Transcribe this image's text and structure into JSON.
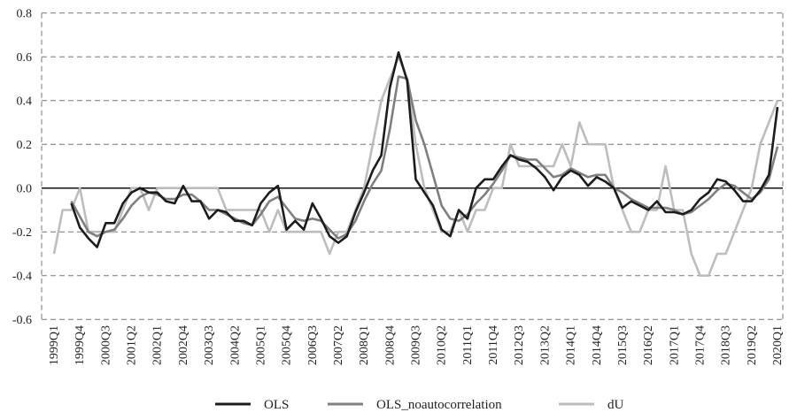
{
  "chart_data": {
    "type": "line",
    "title": "",
    "xlabel": "",
    "ylabel": "",
    "ylim": [
      -0.6,
      0.8
    ],
    "y_ticks": [
      "0.8",
      "0.6",
      "0.4",
      "0.2",
      "0.0",
      "-0.2",
      "-0.4",
      "-0.6"
    ],
    "y_tick_values": [
      0.8,
      0.6,
      0.4,
      0.2,
      0.0,
      -0.2,
      -0.4,
      -0.6
    ],
    "grid": "horizontal dashed",
    "legend_position": "bottom",
    "x": [
      "1999Q1",
      "1999Q2",
      "1999Q3",
      "1999Q4",
      "2000Q1",
      "2000Q2",
      "2000Q3",
      "2000Q4",
      "2001Q1",
      "2001Q2",
      "2001Q3",
      "2001Q4",
      "2002Q1",
      "2002Q2",
      "2002Q3",
      "2002Q4",
      "2003Q1",
      "2003Q2",
      "2003Q3",
      "2003Q4",
      "2004Q1",
      "2004Q2",
      "2004Q3",
      "2004Q4",
      "2005Q1",
      "2005Q2",
      "2005Q3",
      "2005Q4",
      "2006Q1",
      "2006Q2",
      "2006Q3",
      "2006Q4",
      "2007Q1",
      "2007Q2",
      "2007Q3",
      "2007Q4",
      "2008Q1",
      "2008Q2",
      "2008Q3",
      "2008Q4",
      "2009Q1",
      "2009Q2",
      "2009Q3",
      "2009Q4",
      "2010Q1",
      "2010Q2",
      "2010Q3",
      "2010Q4",
      "2011Q1",
      "2011Q2",
      "2011Q3",
      "2011Q4",
      "2012Q1",
      "2012Q2",
      "2012Q3",
      "2012Q4",
      "2013Q1",
      "2013Q2",
      "2013Q3",
      "2013Q4",
      "2014Q1",
      "2014Q2",
      "2014Q3",
      "2014Q4",
      "2015Q1",
      "2015Q2",
      "2015Q3",
      "2015Q4",
      "2016Q1",
      "2016Q2",
      "2016Q3",
      "2016Q4",
      "2017Q1",
      "2017Q2",
      "2017Q3",
      "2017Q4",
      "2018Q1",
      "2018Q2",
      "2018Q3",
      "2018Q4",
      "2019Q1",
      "2019Q2",
      "2019Q3",
      "2019Q4",
      "2020Q1"
    ],
    "x_tick_labels": [
      "1999Q1",
      "1999Q4",
      "2000Q3",
      "2001Q2",
      "2002Q1",
      "2002Q4",
      "2003Q3",
      "2004Q2",
      "2005Q1",
      "2005Q4",
      "2006Q3",
      "2007Q2",
      "2008Q1",
      "2008Q4",
      "2009Q3",
      "2010Q2",
      "2011Q1",
      "2011Q4",
      "2012Q3",
      "2013Q2",
      "2014Q1",
      "2014Q4",
      "2015Q3",
      "2016Q2",
      "2017Q1",
      "2017Q4",
      "2018Q3",
      "2019Q2",
      "2020Q1"
    ],
    "series": [
      {
        "name": "OLS",
        "color": "#1c1c1c",
        "values": [
          null,
          null,
          -0.07,
          -0.18,
          -0.23,
          -0.27,
          -0.16,
          -0.16,
          -0.07,
          -0.02,
          0,
          -0.02,
          -0.02,
          -0.06,
          -0.07,
          0.01,
          -0.06,
          -0.06,
          -0.14,
          -0.1,
          -0.11,
          -0.15,
          -0.15,
          -0.17,
          -0.07,
          -0.02,
          0.01,
          -0.19,
          -0.15,
          -0.19,
          -0.07,
          -0.14,
          -0.22,
          -0.25,
          -0.22,
          -0.11,
          -0.02,
          0.08,
          0.15,
          0.46,
          0.62,
          0.49,
          0.04,
          -0.02,
          -0.08,
          -0.19,
          -0.22,
          -0.1,
          -0.14,
          0.0,
          0.04,
          0.04,
          0.1,
          0.15,
          0.13,
          0.12,
          0.09,
          0.05,
          -0.01,
          0.05,
          0.08,
          0.06,
          0.01,
          0.05,
          0.03,
          0,
          -0.09,
          -0.06,
          -0.08,
          -0.1,
          -0.06,
          -0.11,
          -0.11,
          -0.12,
          -0.1,
          -0.05,
          -0.02,
          0.04,
          0.03,
          -0.01,
          -0.06,
          -0.06,
          -0.01,
          0.06,
          0.37
        ]
      },
      {
        "name": "OLS_noautocorrelation",
        "color": "#7f7f7f",
        "values": [
          null,
          null,
          -0.06,
          -0.13,
          -0.2,
          -0.22,
          -0.2,
          -0.19,
          -0.14,
          -0.08,
          -0.04,
          -0.02,
          -0.03,
          -0.05,
          -0.05,
          -0.03,
          -0.03,
          -0.06,
          -0.1,
          -0.1,
          -0.12,
          -0.14,
          -0.16,
          -0.17,
          -0.12,
          -0.06,
          -0.04,
          -0.09,
          -0.14,
          -0.15,
          -0.14,
          -0.15,
          -0.19,
          -0.23,
          -0.21,
          -0.15,
          -0.06,
          0.02,
          0.08,
          0.27,
          0.51,
          0.5,
          0.31,
          0.2,
          0.06,
          -0.08,
          -0.14,
          -0.15,
          -0.12,
          -0.07,
          -0.03,
          0.02,
          0.08,
          0.15,
          0.14,
          0.13,
          0.13,
          0.09,
          0.05,
          0.06,
          0.09,
          0.07,
          0.05,
          0.06,
          0.06,
          0,
          -0.02,
          -0.05,
          -0.07,
          -0.09,
          -0.09,
          -0.09,
          -0.1,
          -0.12,
          -0.11,
          -0.08,
          -0.05,
          -0.01,
          0.02,
          0.01,
          -0.02,
          -0.05,
          -0.02,
          0.04,
          0.19
        ]
      },
      {
        "name": "dU",
        "color": "#bdbdbd",
        "values": [
          -0.3,
          -0.1,
          -0.1,
          0,
          -0.2,
          -0.2,
          -0.2,
          -0.2,
          -0.1,
          0,
          0,
          -0.1,
          0,
          0,
          0,
          0,
          0,
          0,
          0,
          0,
          -0.1,
          -0.1,
          -0.1,
          -0.1,
          -0.1,
          -0.2,
          -0.1,
          -0.2,
          -0.2,
          -0.2,
          -0.2,
          -0.2,
          -0.3,
          -0.2,
          -0.2,
          -0.1,
          0,
          0.2,
          0.4,
          0.5,
          0.6,
          0.5,
          0.2,
          0,
          -0.1,
          -0.2,
          -0.2,
          -0.1,
          -0.2,
          -0.1,
          -0.1,
          0,
          0,
          0.2,
          0.1,
          0.1,
          0.1,
          0.1,
          0.1,
          0.2,
          0.1,
          0.3,
          0.2,
          0.2,
          0.2,
          0,
          -0.1,
          -0.2,
          -0.2,
          -0.1,
          -0.1,
          0.1,
          -0.1,
          -0.1,
          -0.3,
          -0.4,
          -0.4,
          -0.3,
          -0.3,
          -0.2,
          -0.1,
          0,
          0.2,
          0.3,
          0.4
        ]
      }
    ]
  }
}
